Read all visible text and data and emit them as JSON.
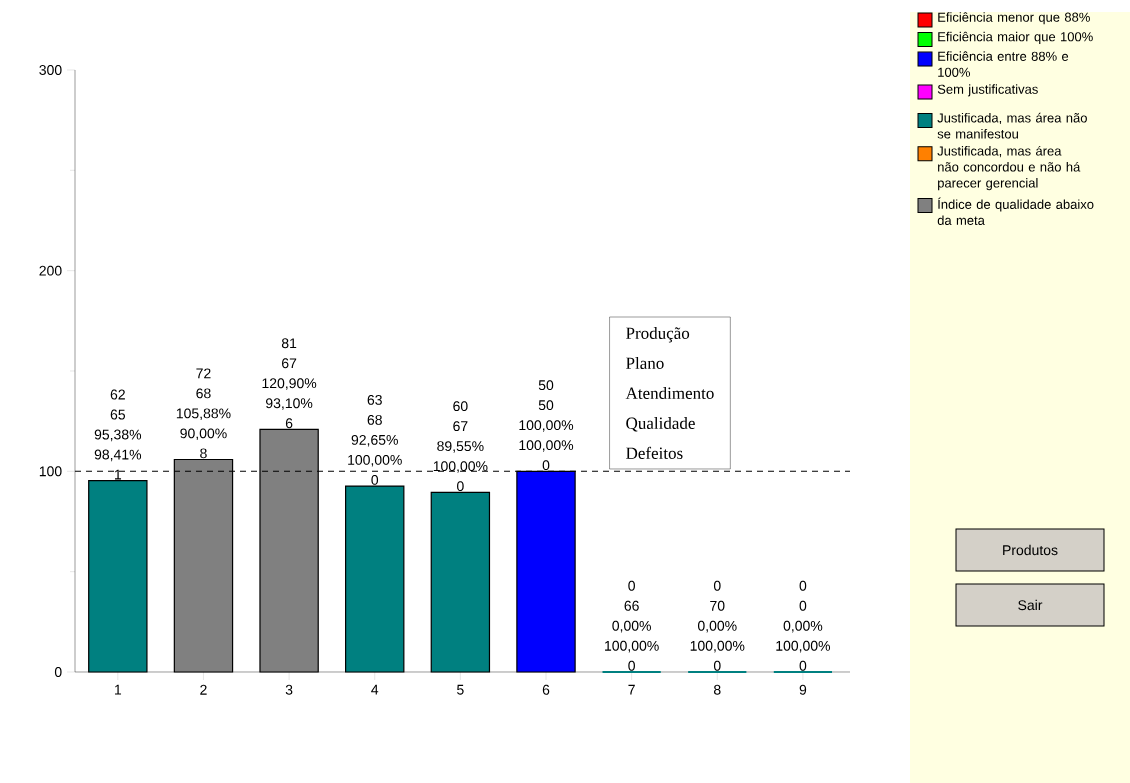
{
  "chart_data": {
    "type": "bar",
    "stacked": true,
    "categories": [
      "1",
      "2",
      "3",
      "4",
      "5",
      "6",
      "7",
      "8",
      "9"
    ],
    "series": [
      {
        "name": "Eficiência menor que 88%",
        "color": "#ff0000",
        "values": [
          null,
          null,
          null,
          null,
          null,
          null,
          null,
          null,
          null
        ]
      },
      {
        "name": "Eficiência maior que 100%",
        "color": "#00ff00",
        "values": [
          null,
          null,
          null,
          null,
          null,
          null,
          null,
          null,
          null
        ]
      },
      {
        "name": "Eficiência entre 88% e 100%",
        "color": "#0000ff",
        "values": [
          null,
          null,
          null,
          null,
          null,
          100,
          null,
          null,
          null
        ]
      },
      {
        "name": "Sem justificativas",
        "color": "#ff00ff",
        "values": [
          null,
          null,
          null,
          null,
          null,
          null,
          null,
          null,
          null
        ]
      },
      {
        "name": "Justificada, mas área não se manifestou",
        "color": "#008080",
        "values": [
          95.38,
          null,
          null,
          92.65,
          89.55,
          null,
          0,
          0,
          0
        ]
      },
      {
        "name": "Justificada, mas área não concordou e não há parecer gerencial",
        "color": "#ff8000",
        "values": [
          null,
          null,
          null,
          null,
          null,
          null,
          null,
          null,
          null
        ]
      },
      {
        "name": "Índice de qualidade abaixo da meta",
        "color": "#808080",
        "values": [
          null,
          105.88,
          120.9,
          null,
          null,
          null,
          null,
          null,
          null
        ]
      }
    ],
    "value_labels": [
      "62 65 95,38% 98,41% 1",
      "72 68 105,88% 90,00% 8",
      "81 67 120,90% 93,10% 6",
      "63 68 92,65% 100,00% 0",
      "60 67 89,55% 100,00% 0",
      "50 50 100,00% 100,00% 0",
      "0 66 0,00% 100,00% 0",
      "0 70 0,00% 100,00% 0",
      "0 0 0,00% 100,00% 0"
    ],
    "ylim": [
      0,
      300
    ],
    "yticks": [
      0,
      100,
      200,
      300
    ],
    "ref_lines": [
      {
        "axis": "y",
        "value": 100,
        "line_style": "dashed"
      }
    ],
    "legend": "right",
    "annotations": [
      "Produção",
      "Plano",
      "Atendimento",
      "Qualidade",
      "Defeitos",
      "Produtos",
      "Sair"
    ]
  }
}
